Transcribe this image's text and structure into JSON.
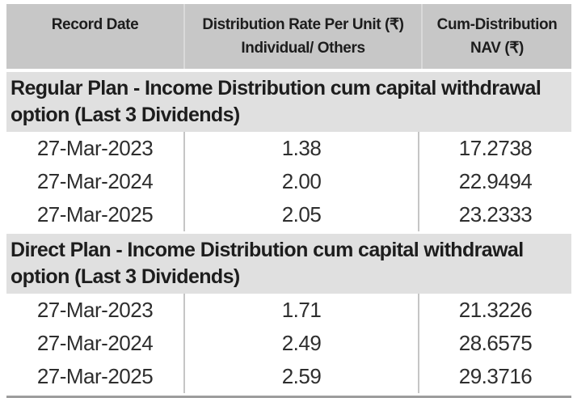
{
  "header": {
    "col1": "Record Date",
    "col2_line1": "Distribution Rate Per Unit (₹)",
    "col2_line2": "Individual/ Others",
    "col3_line1": "Cum-Distribution",
    "col3_line2": "NAV (₹)"
  },
  "sections": [
    {
      "title": "Regular Plan - Income Distribution cum capital withdrawal option (Last 3 Dividends)",
      "rows": [
        {
          "record_date": "27-Mar-2023",
          "rate": "1.38",
          "nav": "17.2738"
        },
        {
          "record_date": "27-Mar-2024",
          "rate": "2.00",
          "nav": "22.9494"
        },
        {
          "record_date": "27-Mar-2025",
          "rate": "2.05",
          "nav": "23.2333"
        }
      ]
    },
    {
      "title": "Direct Plan - Income Distribution cum capital withdrawal option (Last 3 Dividends)",
      "rows": [
        {
          "record_date": "27-Mar-2023",
          "rate": "1.71",
          "nav": "21.3226"
        },
        {
          "record_date": "27-Mar-2024",
          "rate": "2.49",
          "nav": "28.6575"
        },
        {
          "record_date": "27-Mar-2025",
          "rate": "2.59",
          "nav": "29.3716"
        }
      ]
    }
  ],
  "colors": {
    "header_bg": "#c7c7c7",
    "section_bg": "#e0e0e0",
    "header_divider": "#dadada",
    "data_divider": "#c5c5c5",
    "bottom_rule": "#9d9d9d",
    "text": "#1d1d1d"
  }
}
